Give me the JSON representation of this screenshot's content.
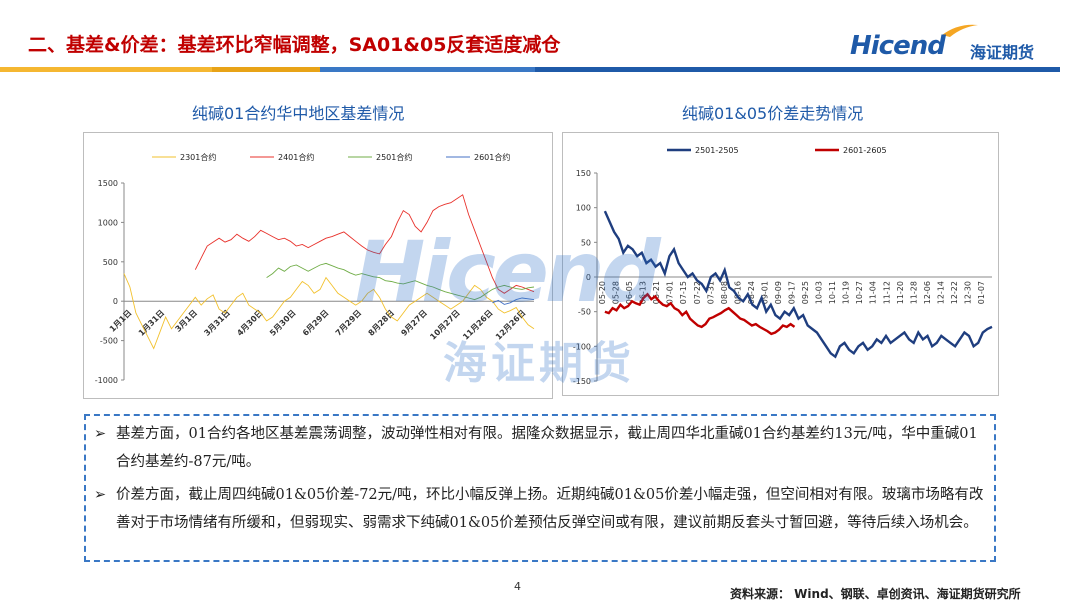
{
  "header": {
    "title": "二、基差&价差：基差环比窄幅调整，SA01&05反套适度减仓",
    "logo_text": "Hicend",
    "logo_cn": "海证期货",
    "stripe_colors": [
      "#f5b731",
      "#e8a317",
      "#3a78c5",
      "#1f5aa8"
    ]
  },
  "watermark": {
    "main": "Hicend",
    "cn": "海证期货"
  },
  "left_chart_title": "纯碱01合约华中地区基差情况",
  "right_chart_title": "纯碱01&05价差走势情况",
  "chart_data": [
    {
      "type": "line",
      "title": "纯碱01合约华中地区基差情况",
      "ylim": [
        -1000,
        1500
      ],
      "yticks": [
        -1000,
        -500,
        0,
        500,
        1000,
        1500
      ],
      "x_tick_labels": [
        "1月1日",
        "1月31日",
        "3月1日",
        "3月31日",
        "4月30日",
        "5月30日",
        "6月29日",
        "7月29日",
        "8月28日",
        "9月27日",
        "10月27日",
        "11月26日",
        "12月26日"
      ],
      "legend_position": "top",
      "series": [
        {
          "name": "2301合约",
          "color": "#f2c12e",
          "values": [
            350,
            180,
            -150,
            -300,
            -450,
            -600,
            -400,
            -200,
            -350,
            -250,
            -150,
            -50,
            50,
            -50,
            30,
            80,
            -100,
            -150,
            -50,
            50,
            100,
            -50,
            -100,
            -150,
            -250,
            -200,
            -100,
            0,
            50,
            150,
            250,
            200,
            100,
            150,
            300,
            200,
            100,
            50,
            0,
            -50,
            0,
            100,
            150,
            50,
            -100,
            -200,
            -250,
            -150,
            -50,
            0,
            50,
            100,
            50,
            0,
            -50,
            -100,
            -50,
            0,
            100,
            200,
            150,
            50,
            0,
            -100,
            -150,
            -120,
            -80,
            -200,
            -300,
            -350
          ]
        },
        {
          "name": "2401合约",
          "color": "#e8312b",
          "values": [
            null,
            null,
            null,
            null,
            null,
            null,
            null,
            null,
            null,
            null,
            null,
            null,
            400,
            550,
            700,
            750,
            800,
            750,
            780,
            850,
            800,
            760,
            820,
            900,
            860,
            820,
            780,
            800,
            760,
            700,
            720,
            680,
            720,
            760,
            800,
            820,
            850,
            880,
            820,
            760,
            700,
            650,
            620,
            600,
            720,
            820,
            1000,
            1150,
            1100,
            950,
            880,
            1000,
            1150,
            1200,
            1230,
            1250,
            1300,
            1350,
            1100,
            900,
            700,
            500,
            300,
            150,
            100,
            150,
            200,
            180,
            150,
            120
          ]
        },
        {
          "name": "2501合约",
          "color": "#70ad47",
          "values": [
            null,
            null,
            null,
            null,
            null,
            null,
            null,
            null,
            null,
            null,
            null,
            null,
            null,
            null,
            null,
            null,
            null,
            null,
            null,
            null,
            null,
            null,
            null,
            null,
            300,
            350,
            420,
            380,
            440,
            460,
            420,
            380,
            420,
            460,
            480,
            450,
            420,
            400,
            360,
            330,
            350,
            330,
            310,
            300,
            260,
            250,
            230,
            220,
            240,
            260,
            230,
            200,
            180,
            150,
            120,
            100,
            80,
            60,
            40,
            20,
            50,
            100,
            150,
            180,
            200,
            180,
            160,
            150,
            170,
            180
          ]
        },
        {
          "name": "2601合约",
          "color": "#4472c4",
          "values": [
            null,
            null,
            null,
            null,
            null,
            null,
            null,
            null,
            null,
            null,
            null,
            null,
            null,
            null,
            null,
            null,
            null,
            null,
            null,
            null,
            null,
            null,
            null,
            null,
            null,
            null,
            null,
            null,
            null,
            null,
            null,
            null,
            null,
            null,
            null,
            null,
            null,
            null,
            null,
            null,
            null,
            null,
            null,
            null,
            null,
            null,
            null,
            null,
            null,
            null,
            null,
            null,
            null,
            null,
            null,
            null,
            null,
            null,
            null,
            null,
            null,
            null,
            -20,
            10,
            -40,
            -20,
            20,
            40,
            30,
            20
          ]
        }
      ]
    },
    {
      "type": "line",
      "title": "纯碱01&05价差走势情况",
      "ylim": [
        -150,
        150
      ],
      "yticks": [
        -150,
        -100,
        -50,
        0,
        50,
        100,
        150
      ],
      "x_tick_labels": [
        "05-20",
        "05-28",
        "06-05",
        "06-13",
        "06-21",
        "07-01",
        "07-15",
        "07-22",
        "07-31",
        "08-08",
        "08-16",
        "08-24",
        "09-01",
        "09-09",
        "09-17",
        "09-25",
        "10-03",
        "10-11",
        "10-19",
        "10-27",
        "11-04",
        "11-12",
        "11-20",
        "11-28",
        "12-06",
        "12-14",
        "12-22",
        "12-30",
        "01-07"
      ],
      "legend_position": "top",
      "series": [
        {
          "name": "2501-2505",
          "color": "#1f3e7f",
          "values": [
            95,
            80,
            65,
            55,
            35,
            45,
            40,
            30,
            35,
            20,
            25,
            15,
            20,
            5,
            30,
            40,
            20,
            10,
            0,
            5,
            -5,
            -10,
            -20,
            0,
            5,
            -5,
            10,
            -15,
            -20,
            -30,
            -35,
            -25,
            -40,
            -45,
            -30,
            -50,
            -40,
            -55,
            -60,
            -50,
            -55,
            -45,
            -60,
            -55,
            -70,
            -75,
            -80,
            -90,
            -100,
            -110,
            -115,
            -100,
            -95,
            -105,
            -110,
            -100,
            -95,
            -105,
            -100,
            -90,
            -95,
            -85,
            -95,
            -90,
            -85,
            -80,
            -90,
            -95,
            -80,
            -90,
            -85,
            -100,
            -95,
            -85,
            -90,
            -95,
            -100,
            -90,
            -80,
            -85,
            -100,
            -95,
            -80,
            -75,
            -72
          ]
        },
        {
          "name": "2601-2605",
          "color": "#c00000",
          "values": [
            -50,
            -52,
            -45,
            -48,
            -40,
            -45,
            -42,
            -35,
            -38,
            -40,
            -30,
            -25,
            -32,
            -28,
            -35,
            -40,
            -42,
            -38,
            -45,
            -48,
            -55,
            -50,
            -60,
            -65,
            -70,
            -72,
            -68,
            -60,
            -58,
            -55,
            -52,
            -48,
            -45,
            -50,
            -55,
            -60,
            -62,
            -66,
            -70,
            -68,
            -72,
            -75,
            -78,
            -82,
            -80,
            -76,
            -70,
            -72,
            -68,
            -72
          ]
        }
      ]
    }
  ],
  "bullets": [
    "基差方面，01合约各地区基差震荡调整，波动弹性相对有限。据隆众数据显示，截止周四华北重碱01合约基差约13元/吨，华中重碱01合约基差约-87元/吨。",
    "价差方面，截止周四纯碱01&05价差-72元/吨，环比小幅反弹上扬。近期纯碱01&05价差小幅走强，但空间相对有限。玻璃市场略有改善对于市场情绪有所缓和，但弱现实、弱需求下纯碱01&05价差预估反弹空间或有限，建议前期反套头寸暂回避，等待后续入场机会。"
  ],
  "bullet_mark": "➢",
  "page_number": "4",
  "source": "资料来源： Wind、钢联、卓创资讯、海证期货研究所"
}
